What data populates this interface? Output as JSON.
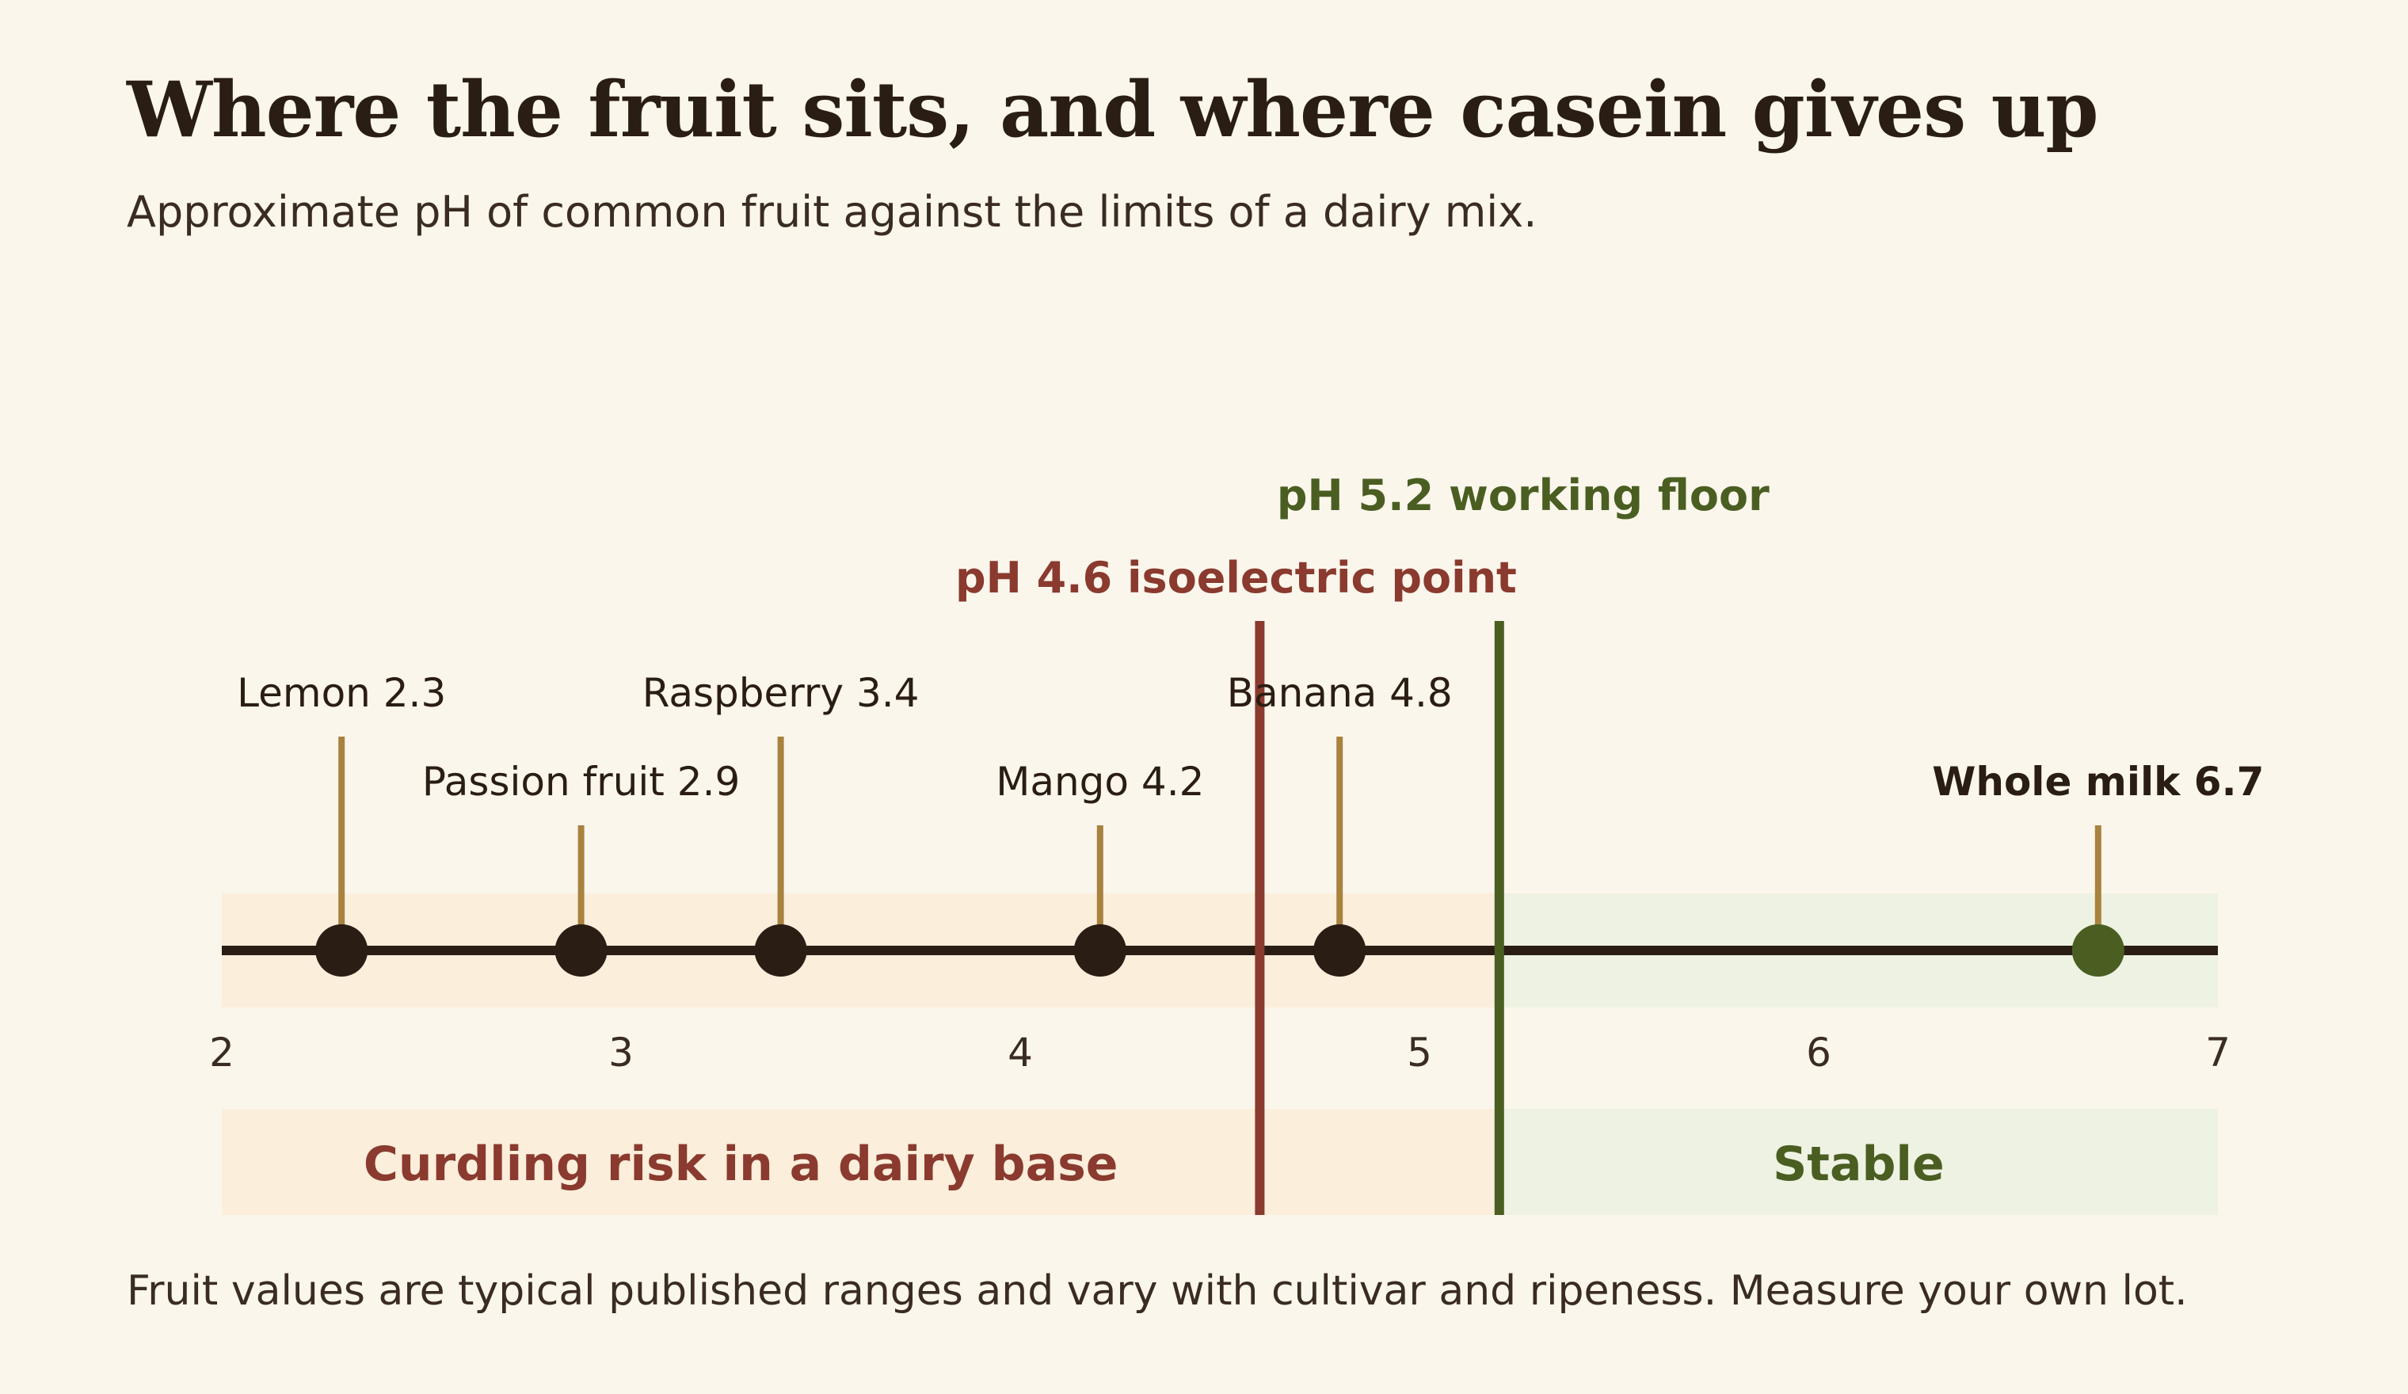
{
  "chart_data": {
    "type": "scatter",
    "title": "Where the fruit sits, and where casein gives up",
    "subtitle": "Approximate pH of common fruit against the limits of a dairy mix.",
    "footnote": "Fruit values are typical published ranges and vary with cultivar and ripeness. Measure your own lot.",
    "xlim": [
      2,
      7
    ],
    "ticks": [
      2,
      3,
      4,
      5,
      6,
      7
    ],
    "points": [
      {
        "name": "Lemon",
        "x": 2.3,
        "label": "Lemon 2.3",
        "tier": "high",
        "kind": "fruit"
      },
      {
        "name": "Passion fruit",
        "x": 2.9,
        "label": "Passion fruit 2.9",
        "tier": "low",
        "kind": "fruit"
      },
      {
        "name": "Raspberry",
        "x": 3.4,
        "label": "Raspberry 3.4",
        "tier": "high",
        "kind": "fruit"
      },
      {
        "name": "Mango",
        "x": 4.2,
        "label": "Mango 4.2",
        "tier": "low",
        "kind": "fruit"
      },
      {
        "name": "Banana",
        "x": 4.8,
        "label": "Banana 4.8",
        "tier": "high",
        "kind": "fruit"
      },
      {
        "name": "Whole milk",
        "x": 6.7,
        "label": "Whole milk 6.7",
        "tier": "low",
        "kind": "reference"
      }
    ],
    "thresholds": [
      {
        "x": 4.6,
        "label": "pH 4.6 isoelectric point",
        "color": "#8a3a2e"
      },
      {
        "x": 5.2,
        "label": "pH 5.2 working floor",
        "color": "#4a5e22"
      }
    ],
    "zones": [
      {
        "from": 2,
        "to": 5.2,
        "label": "Curdling risk in a dairy base",
        "fill": "#fbeedb",
        "text_color": "#8a3a2e"
      },
      {
        "from": 5.2,
        "to": 7,
        "label": "Stable",
        "fill": "#eef2e2",
        "text_color": "#4a5e22"
      }
    ],
    "colors": {
      "axis": "#2a1d14",
      "fruit_dot": "#2a1d14",
      "reference_dot": "#4a5e22",
      "leader": "#a8823e"
    }
  }
}
